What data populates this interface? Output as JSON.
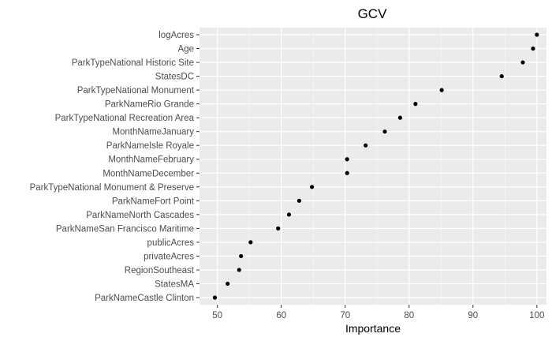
{
  "chart_data": {
    "type": "scatter",
    "title": "GCV",
    "xlabel": "Importance",
    "ylabel": "",
    "xlim": [
      47.2,
      101.5
    ],
    "xticks": [
      50,
      60,
      70,
      80,
      90,
      100
    ],
    "grid": true,
    "colors": {
      "panel": "#ebebeb",
      "grid_major": "#ffffff",
      "point": "#000000",
      "tick_text": "#4d4d4d"
    },
    "categories": [
      "logAcres",
      "Age",
      "ParkTypeNational Historic Site",
      "StatesDC",
      "ParkTypeNational Monument",
      "ParkNameRio Grande",
      "ParkTypeNational Recreation Area",
      "MonthNameJanuary",
      "ParkNameIsle Royale",
      "MonthNameFebruary",
      "MonthNameDecember",
      "ParkTypeNational Monument & Preserve",
      "ParkNameFort Point",
      "ParkNameNorth Cascades",
      "ParkNameSan Francisco Maritime",
      "publicAcres",
      "privateAcres",
      "RegionSoutheast",
      "StatesMA",
      "ParkNameCastle Clinton"
    ],
    "values": [
      100,
      99.4,
      97.8,
      94.5,
      85.1,
      81.0,
      78.6,
      76.2,
      73.2,
      70.3,
      70.3,
      64.8,
      62.8,
      61.2,
      59.5,
      55.2,
      53.7,
      53.4,
      51.6,
      49.6
    ]
  }
}
